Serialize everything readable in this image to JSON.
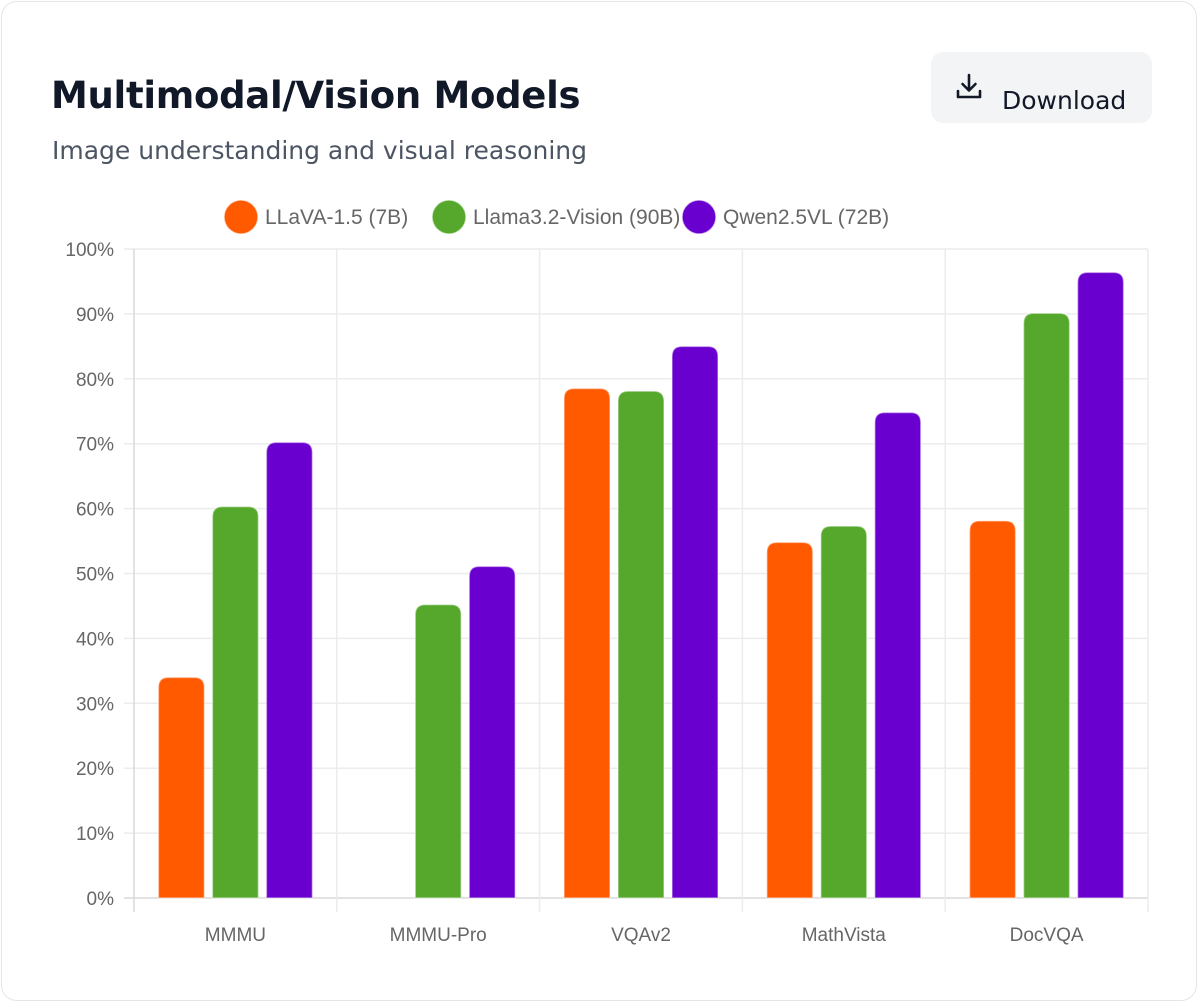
{
  "header": {
    "title": "Multimodal/Vision Models",
    "subtitle": "Image understanding and visual reasoning",
    "download_label": "Download",
    "download_icon": "download-icon"
  },
  "chart_data": {
    "type": "bar",
    "categories": [
      "MMMU",
      "MMMU-Pro",
      "VQAv2",
      "MathVista",
      "DocVQA"
    ],
    "series": [
      {
        "name": "LLaVA-1.5 (7B)",
        "color": "#ff5a00",
        "values": [
          34,
          null,
          78.5,
          54.8,
          58.1
        ]
      },
      {
        "name": "Llama3.2-Vision (90B)",
        "color": "#56a82c",
        "values": [
          60.3,
          45.2,
          78.1,
          57.3,
          90.1
        ]
      },
      {
        "name": "Qwen2.5VL (72B)",
        "color": "#6900cf",
        "values": [
          70.2,
          51.1,
          85,
          74.8,
          96.4
        ]
      }
    ],
    "y_ticks": [
      "0%",
      "10%",
      "20%",
      "30%",
      "40%",
      "50%",
      "60%",
      "70%",
      "80%",
      "90%",
      "100%"
    ],
    "ylim": [
      0,
      100
    ],
    "grid": true,
    "legend_position": "top"
  }
}
